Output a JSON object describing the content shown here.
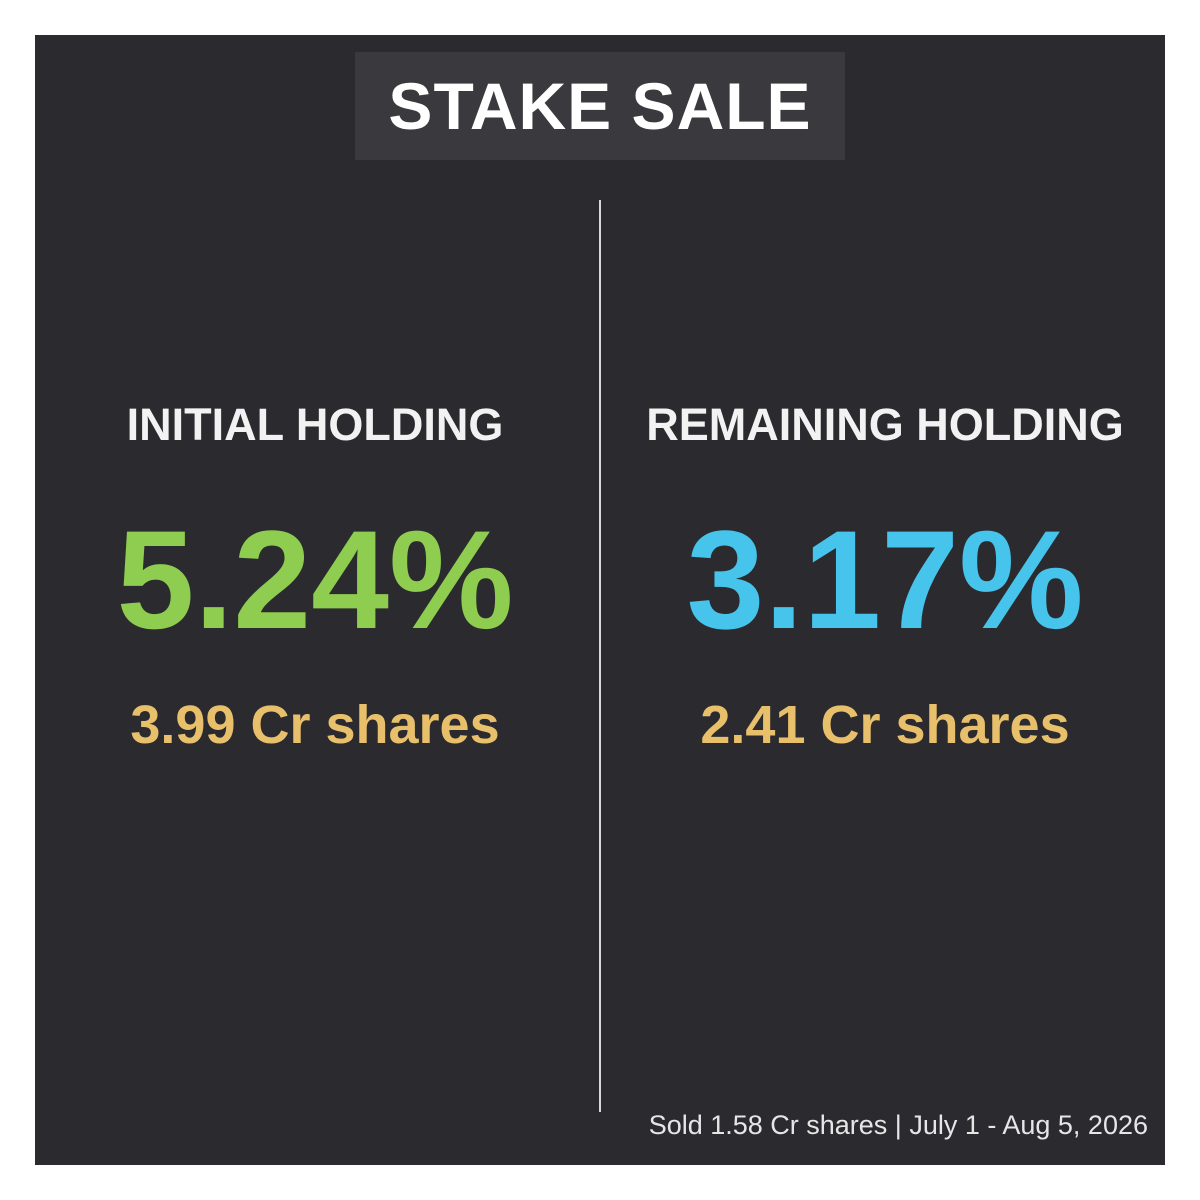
{
  "title": "STAKE SALE",
  "panels": [
    {
      "label": "INITIAL HOLDING",
      "percent": "5.24%",
      "shares": "3.99 Cr shares"
    },
    {
      "label": "REMAINING HOLDING",
      "percent": "3.17%",
      "shares": "2.41 Cr shares"
    }
  ],
  "footer": "Sold 1.58 Cr shares | July 1 - Aug 5, 2026"
}
